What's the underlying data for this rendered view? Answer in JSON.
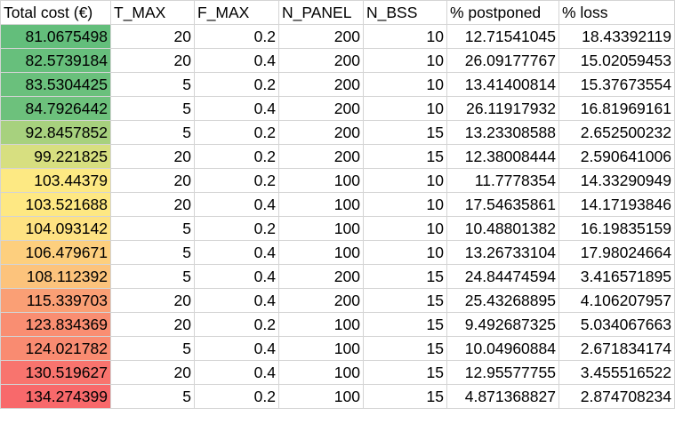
{
  "columns": [
    "Total cost (€)",
    "T_MAX",
    "F_MAX",
    "N_PANEL",
    "N_BSS",
    "% postponed",
    "% loss"
  ],
  "rows": [
    {
      "cost": "81.0675498",
      "t_max": "20",
      "f_max": "0.2",
      "n_panel": "200",
      "n_bss": "10",
      "postponed": "12.71541045",
      "loss": "18.43392119",
      "color": "#63be7b"
    },
    {
      "cost": "82.5739184",
      "t_max": "20",
      "f_max": "0.4",
      "n_panel": "200",
      "n_bss": "10",
      "postponed": "26.09177767",
      "loss": "15.02059453",
      "color": "#67bf7c"
    },
    {
      "cost": "83.5304425",
      "t_max": "5",
      "f_max": "0.2",
      "n_panel": "200",
      "n_bss": "10",
      "postponed": "13.41400814",
      "loss": "15.37673554",
      "color": "#6ac07c"
    },
    {
      "cost": "84.7926442",
      "t_max": "5",
      "f_max": "0.4",
      "n_panel": "200",
      "n_bss": "10",
      "postponed": "26.11917932",
      "loss": "16.81969161",
      "color": "#6dc17c"
    },
    {
      "cost": "92.8457852",
      "t_max": "5",
      "f_max": "0.2",
      "n_panel": "200",
      "n_bss": "15",
      "postponed": "13.23308588",
      "loss": "2.652500232",
      "color": "#a7d17e"
    },
    {
      "cost": "99.221825",
      "t_max": "20",
      "f_max": "0.2",
      "n_panel": "200",
      "n_bss": "15",
      "postponed": "12.38008444",
      "loss": "2.590641006",
      "color": "#d7df80"
    },
    {
      "cost": "103.44379",
      "t_max": "20",
      "f_max": "0.2",
      "n_panel": "100",
      "n_bss": "10",
      "postponed": "11.7778354",
      "loss": "14.33290949",
      "color": "#fde983"
    },
    {
      "cost": "103.521688",
      "t_max": "20",
      "f_max": "0.4",
      "n_panel": "100",
      "n_bss": "10",
      "postponed": "17.54635861",
      "loss": "14.17193846",
      "color": "#fee883"
    },
    {
      "cost": "104.093142",
      "t_max": "5",
      "f_max": "0.2",
      "n_panel": "100",
      "n_bss": "10",
      "postponed": "10.48801382",
      "loss": "16.19835159",
      "color": "#fee282"
    },
    {
      "cost": "106.479671",
      "t_max": "5",
      "f_max": "0.4",
      "n_panel": "100",
      "n_bss": "10",
      "postponed": "13.26733104",
      "loss": "17.98024664",
      "color": "#fdcf7e"
    },
    {
      "cost": "108.112392",
      "t_max": "5",
      "f_max": "0.4",
      "n_panel": "200",
      "n_bss": "15",
      "postponed": "24.84474594",
      "loss": "3.416571895",
      "color": "#fcc37c"
    },
    {
      "cost": "115.339703",
      "t_max": "20",
      "f_max": "0.4",
      "n_panel": "200",
      "n_bss": "15",
      "postponed": "25.43268895",
      "loss": "4.106207957",
      "color": "#fa9f75"
    },
    {
      "cost": "123.834369",
      "t_max": "20",
      "f_max": "0.2",
      "n_panel": "100",
      "n_bss": "15",
      "postponed": "9.492687325",
      "loss": "5.034067663",
      "color": "#f98e72"
    },
    {
      "cost": "124.021782",
      "t_max": "5",
      "f_max": "0.4",
      "n_panel": "100",
      "n_bss": "15",
      "postponed": "10.04960884",
      "loss": "2.671834174",
      "color": "#f98b71"
    },
    {
      "cost": "130.519627",
      "t_max": "20",
      "f_max": "0.4",
      "n_panel": "100",
      "n_bss": "15",
      "postponed": "12.95577755",
      "loss": "3.455516522",
      "color": "#f8746e"
    },
    {
      "cost": "134.274399",
      "t_max": "5",
      "f_max": "0.2",
      "n_panel": "100",
      "n_bss": "15",
      "postponed": "4.871368827",
      "loss": "2.874708234",
      "color": "#f8696b"
    }
  ]
}
